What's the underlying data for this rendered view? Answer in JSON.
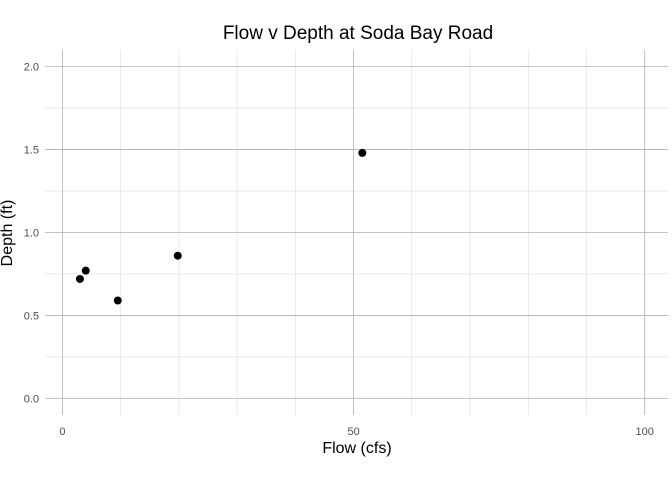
{
  "chart_data": {
    "type": "scatter",
    "title": "Flow v Depth at Soda Bay Road",
    "xlabel": "Flow (cfs)",
    "ylabel": "Depth (ft)",
    "xlim": [
      -3,
      104
    ],
    "ylim": [
      -0.1,
      2.1
    ],
    "x_major_ticks": [
      0,
      50,
      100
    ],
    "x_tick_labels": [
      "0",
      "50",
      "100"
    ],
    "x_minor_ticks": [
      10,
      20,
      30,
      40,
      60,
      70,
      80,
      90
    ],
    "y_major_ticks": [
      0.0,
      0.5,
      1.0,
      1.5,
      2.0
    ],
    "y_tick_labels": [
      "0.0",
      "0.5",
      "1.0",
      "1.5",
      "2.0"
    ],
    "y_minor_ticks": [
      0.25,
      0.75,
      1.25,
      1.75
    ],
    "grid": true,
    "point_color": "#000000",
    "series": [
      {
        "points": [
          {
            "x": 3.0,
            "y": 0.72
          },
          {
            "x": 4.0,
            "y": 0.77
          },
          {
            "x": 9.5,
            "y": 0.59
          },
          {
            "x": 19.8,
            "y": 0.86
          },
          {
            "x": 51.5,
            "y": 1.48
          }
        ]
      }
    ]
  }
}
